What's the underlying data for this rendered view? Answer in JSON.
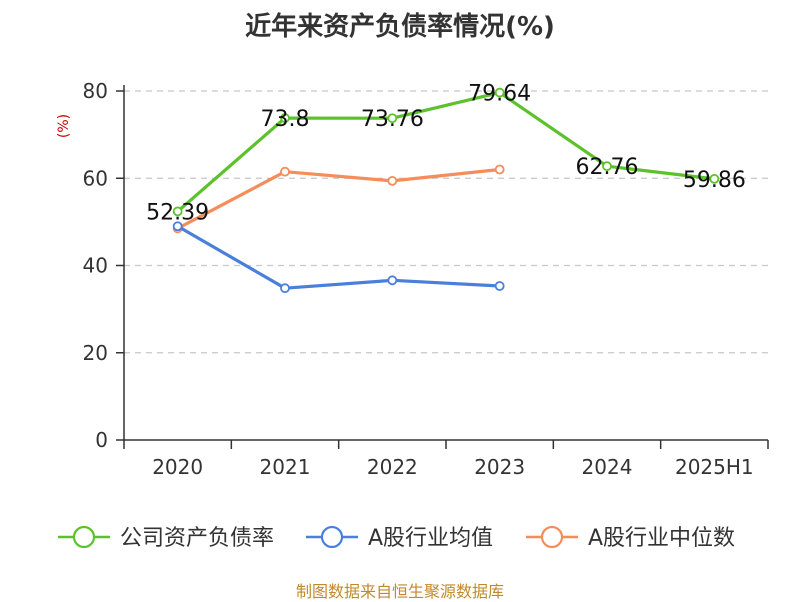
{
  "chart_data": {
    "type": "line",
    "title": "近年来资产负债率情况(%)",
    "ylabel": "(%)",
    "xlabel": "",
    "ylim": [
      0,
      80
    ],
    "yticks": [
      0,
      20,
      40,
      60,
      80
    ],
    "grid": true,
    "legend_position": "bottom",
    "categories": [
      "2020",
      "2021",
      "2022",
      "2023",
      "2024",
      "2025H1"
    ],
    "series": [
      {
        "name": "公司资产负债率",
        "color": "#5cc22b",
        "values": [
          52.39,
          73.8,
          73.76,
          79.64,
          62.76,
          59.86
        ],
        "labels": [
          "52.39",
          "73.8",
          "73.76",
          "79.64",
          "62.76",
          "59.86"
        ]
      },
      {
        "name": "A股行业均值",
        "color": "#4a7fdc",
        "values": [
          49.0,
          34.8,
          36.6,
          35.3,
          null,
          null
        ]
      },
      {
        "name": "A股行业中位数",
        "color": "#f58d5a",
        "values": [
          48.5,
          61.5,
          59.4,
          62.0,
          null,
          null
        ]
      }
    ]
  },
  "footer": {
    "source": "制图数据来自恒生聚源数据库"
  }
}
